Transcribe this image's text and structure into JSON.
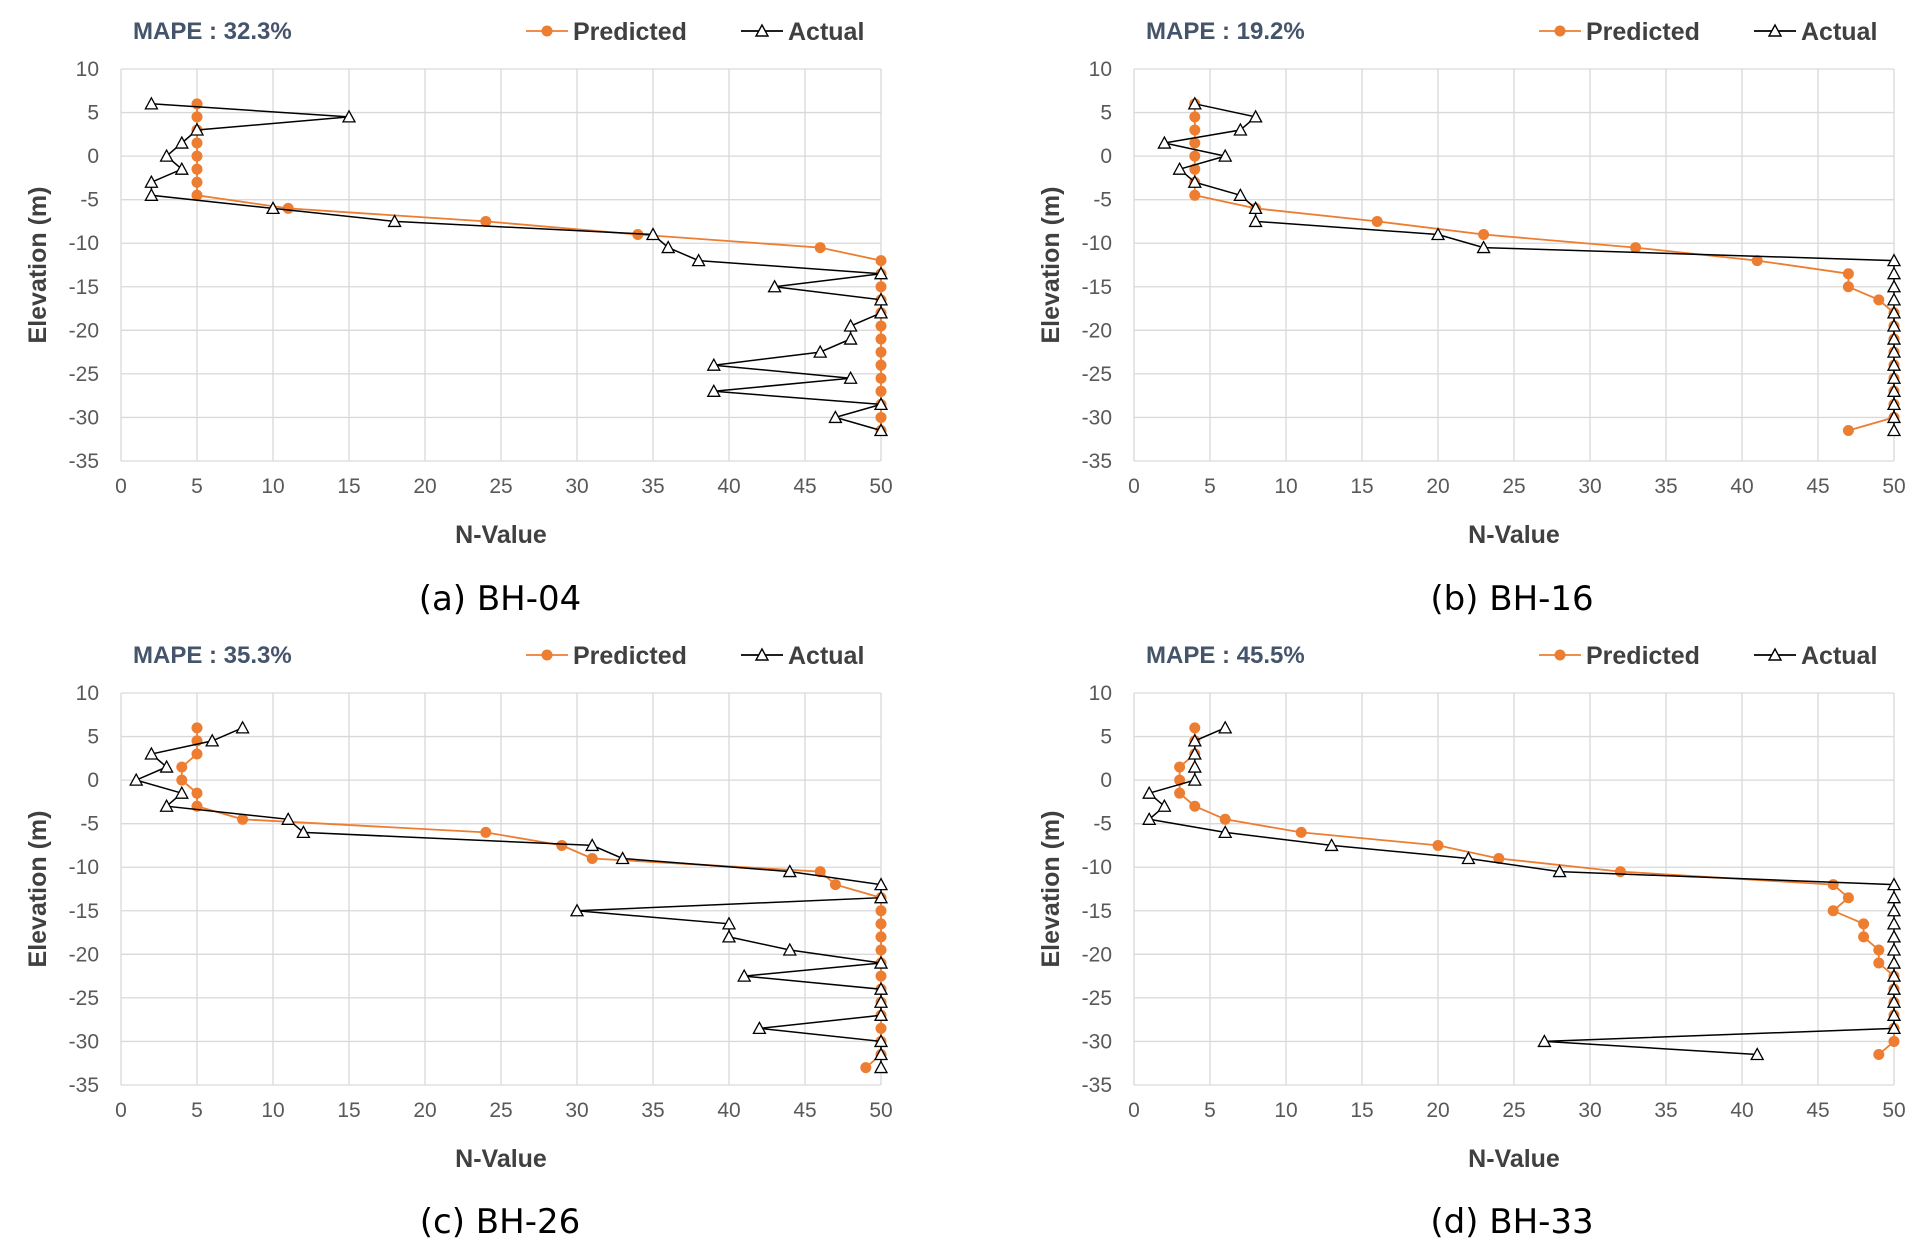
{
  "chart_data": [
    {
      "type": "line",
      "title": "MAPE : 32.3%",
      "caption": "(a) BH-04",
      "xlabel": "N-Value",
      "ylabel": "Elevation (m)",
      "xlim": [
        0,
        50
      ],
      "ylim": [
        -35,
        10
      ],
      "xticks": [
        "0",
        "5",
        "10",
        "15",
        "20",
        "25",
        "30",
        "35",
        "40",
        "45",
        "50"
      ],
      "yticks": [
        "10",
        "5",
        "0",
        "-5",
        "-10",
        "-15",
        "-20",
        "-25",
        "-30",
        "-35"
      ],
      "grid": true,
      "legend": "top-right",
      "series": [
        {
          "name": "Predicted",
          "color": "#ed7d31",
          "marker": "circle",
          "points": [
            [
              5,
              6
            ],
            [
              5,
              4.5
            ],
            [
              5,
              3
            ],
            [
              5,
              1.5
            ],
            [
              5,
              0
            ],
            [
              5,
              -1.5
            ],
            [
              5,
              -3
            ],
            [
              5,
              -4.5
            ],
            [
              11,
              -6
            ],
            [
              24,
              -7.5
            ],
            [
              34,
              -9
            ],
            [
              46,
              -10.5
            ],
            [
              50,
              -12
            ],
            [
              50,
              -13.5
            ],
            [
              50,
              -15
            ],
            [
              50,
              -16.5
            ],
            [
              50,
              -18
            ],
            [
              50,
              -19.5
            ],
            [
              50,
              -21
            ],
            [
              50,
              -22.5
            ],
            [
              50,
              -24
            ],
            [
              50,
              -25.5
            ],
            [
              50,
              -27
            ],
            [
              50,
              -28.5
            ],
            [
              50,
              -30
            ],
            [
              50,
              -31.5
            ]
          ]
        },
        {
          "name": "Actual",
          "color": "#000000",
          "marker": "triangle",
          "points": [
            [
              2,
              6
            ],
            [
              15,
              4.5
            ],
            [
              5,
              3
            ],
            [
              4,
              1.5
            ],
            [
              3,
              0
            ],
            [
              4,
              -1.5
            ],
            [
              2,
              -3
            ],
            [
              2,
              -4.5
            ],
            [
              10,
              -6
            ],
            [
              18,
              -7.5
            ],
            [
              35,
              -9
            ],
            [
              36,
              -10.5
            ],
            [
              38,
              -12
            ],
            [
              50,
              -13.5
            ],
            [
              43,
              -15
            ],
            [
              50,
              -16.5
            ],
            [
              50,
              -18
            ],
            [
              48,
              -19.5
            ],
            [
              48,
              -21
            ],
            [
              46,
              -22.5
            ],
            [
              39,
              -24
            ],
            [
              48,
              -25.5
            ],
            [
              39,
              -27
            ],
            [
              50,
              -28.5
            ],
            [
              47,
              -30
            ],
            [
              50,
              -31.5
            ]
          ]
        }
      ]
    },
    {
      "type": "line",
      "title": "MAPE : 19.2%",
      "caption": "(b) BH-16",
      "xlabel": "N-Value",
      "ylabel": "Elevation (m)",
      "xlim": [
        0,
        50
      ],
      "ylim": [
        -35,
        10
      ],
      "xticks": [
        "0",
        "5",
        "10",
        "15",
        "20",
        "25",
        "30",
        "35",
        "40",
        "45",
        "50"
      ],
      "yticks": [
        "10",
        "5",
        "0",
        "-5",
        "-10",
        "-15",
        "-20",
        "-25",
        "-30",
        "-35"
      ],
      "grid": true,
      "legend": "top-right",
      "series": [
        {
          "name": "Predicted",
          "color": "#ed7d31",
          "marker": "circle",
          "points": [
            [
              4,
              6
            ],
            [
              4,
              4.5
            ],
            [
              4,
              3
            ],
            [
              4,
              1.5
            ],
            [
              4,
              0
            ],
            [
              4,
              -1.5
            ],
            [
              4,
              -3
            ],
            [
              4,
              -4.5
            ],
            [
              8,
              -6
            ],
            [
              16,
              -7.5
            ],
            [
              23,
              -9
            ],
            [
              33,
              -10.5
            ],
            [
              41,
              -12
            ],
            [
              47,
              -13.5
            ],
            [
              47,
              -15
            ],
            [
              49,
              -16.5
            ],
            [
              50,
              -18
            ],
            [
              50,
              -19.5
            ],
            [
              50,
              -21
            ],
            [
              50,
              -22.5
            ],
            [
              50,
              -24
            ],
            [
              50,
              -25.5
            ],
            [
              50,
              -27
            ],
            [
              50,
              -28.5
            ],
            [
              50,
              -30
            ],
            [
              47,
              -31.5
            ]
          ]
        },
        {
          "name": "Actual",
          "color": "#000000",
          "marker": "triangle",
          "points": [
            [
              4,
              6
            ],
            [
              8,
              4.5
            ],
            [
              7,
              3
            ],
            [
              2,
              1.5
            ],
            [
              6,
              0
            ],
            [
              3,
              -1.5
            ],
            [
              4,
              -3
            ],
            [
              7,
              -4.5
            ],
            [
              8,
              -6
            ],
            [
              8,
              -7.5
            ],
            [
              20,
              -9
            ],
            [
              23,
              -10.5
            ],
            [
              50,
              -12
            ],
            [
              50,
              -13.5
            ],
            [
              50,
              -15
            ],
            [
              50,
              -16.5
            ],
            [
              50,
              -18
            ],
            [
              50,
              -19.5
            ],
            [
              50,
              -21
            ],
            [
              50,
              -22.5
            ],
            [
              50,
              -24
            ],
            [
              50,
              -25.5
            ],
            [
              50,
              -27
            ],
            [
              50,
              -28.5
            ],
            [
              50,
              -30
            ],
            [
              50,
              -31.5
            ]
          ]
        }
      ]
    },
    {
      "type": "line",
      "title": "MAPE : 35.3%",
      "caption": "(c) BH-26",
      "xlabel": "N-Value",
      "ylabel": "Elevation (m)",
      "xlim": [
        0,
        50
      ],
      "ylim": [
        -35,
        10
      ],
      "xticks": [
        "0",
        "5",
        "10",
        "15",
        "20",
        "25",
        "30",
        "35",
        "40",
        "45",
        "50"
      ],
      "yticks": [
        "10",
        "5",
        "0",
        "-5",
        "-10",
        "-15",
        "-20",
        "-25",
        "-30",
        "-35"
      ],
      "grid": true,
      "legend": "top-right",
      "series": [
        {
          "name": "Predicted",
          "color": "#ed7d31",
          "marker": "circle",
          "points": [
            [
              5,
              6
            ],
            [
              5,
              4.5
            ],
            [
              5,
              3
            ],
            [
              4,
              1.5
            ],
            [
              4,
              0
            ],
            [
              5,
              -1.5
            ],
            [
              5,
              -3
            ],
            [
              8,
              -4.5
            ],
            [
              24,
              -6
            ],
            [
              29,
              -7.5
            ],
            [
              31,
              -9
            ],
            [
              46,
              -10.5
            ],
            [
              47,
              -12
            ],
            [
              50,
              -13.5
            ],
            [
              50,
              -15
            ],
            [
              50,
              -16.5
            ],
            [
              50,
              -18
            ],
            [
              50,
              -19.5
            ],
            [
              50,
              -21
            ],
            [
              50,
              -22.5
            ],
            [
              50,
              -24
            ],
            [
              50,
              -25.5
            ],
            [
              50,
              -27
            ],
            [
              50,
              -28.5
            ],
            [
              50,
              -30
            ],
            [
              50,
              -31.5
            ],
            [
              49,
              -33
            ]
          ]
        },
        {
          "name": "Actual",
          "color": "#000000",
          "marker": "triangle",
          "points": [
            [
              8,
              6
            ],
            [
              6,
              4.5
            ],
            [
              2,
              3
            ],
            [
              3,
              1.5
            ],
            [
              1,
              0
            ],
            [
              4,
              -1.5
            ],
            [
              3,
              -3
            ],
            [
              11,
              -4.5
            ],
            [
              12,
              -6
            ],
            [
              31,
              -7.5
            ],
            [
              33,
              -9
            ],
            [
              44,
              -10.5
            ],
            [
              50,
              -12
            ],
            [
              50,
              -13.5
            ],
            [
              30,
              -15
            ],
            [
              40,
              -16.5
            ],
            [
              40,
              -18
            ],
            [
              44,
              -19.5
            ],
            [
              50,
              -21
            ],
            [
              41,
              -22.5
            ],
            [
              50,
              -24
            ],
            [
              50,
              -25.5
            ],
            [
              50,
              -27
            ],
            [
              42,
              -28.5
            ],
            [
              50,
              -30
            ],
            [
              50,
              -31.5
            ],
            [
              50,
              -33
            ]
          ]
        }
      ]
    },
    {
      "type": "line",
      "title": "MAPE : 45.5%",
      "caption": "(d) BH-33",
      "xlabel": "N-Value",
      "ylabel": "Elevation (m)",
      "xlim": [
        0,
        50
      ],
      "ylim": [
        -35,
        10
      ],
      "xticks": [
        "0",
        "5",
        "10",
        "15",
        "20",
        "25",
        "30",
        "35",
        "40",
        "45",
        "50"
      ],
      "yticks": [
        "10",
        "5",
        "0",
        "-5",
        "-10",
        "-15",
        "-20",
        "-25",
        "-30",
        "-35"
      ],
      "grid": true,
      "legend": "top-right",
      "series": [
        {
          "name": "Predicted",
          "color": "#ed7d31",
          "marker": "circle",
          "points": [
            [
              4,
              6
            ],
            [
              4,
              4.5
            ],
            [
              4,
              3
            ],
            [
              3,
              1.5
            ],
            [
              3,
              0
            ],
            [
              3,
              -1.5
            ],
            [
              4,
              -3
            ],
            [
              6,
              -4.5
            ],
            [
              11,
              -6
            ],
            [
              20,
              -7.5
            ],
            [
              24,
              -9
            ],
            [
              32,
              -10.5
            ],
            [
              46,
              -12
            ],
            [
              47,
              -13.5
            ],
            [
              46,
              -15
            ],
            [
              48,
              -16.5
            ],
            [
              48,
              -18
            ],
            [
              49,
              -19.5
            ],
            [
              49,
              -21
            ],
            [
              50,
              -22.5
            ],
            [
              50,
              -24
            ],
            [
              50,
              -25.5
            ],
            [
              50,
              -27
            ],
            [
              50,
              -28.5
            ],
            [
              50,
              -30
            ],
            [
              49,
              -31.5
            ]
          ]
        },
        {
          "name": "Actual",
          "color": "#000000",
          "marker": "triangle",
          "points": [
            [
              6,
              6
            ],
            [
              4,
              4.5
            ],
            [
              4,
              3
            ],
            [
              4,
              1.5
            ],
            [
              4,
              0
            ],
            [
              1,
              -1.5
            ],
            [
              2,
              -3
            ],
            [
              1,
              -4.5
            ],
            [
              6,
              -6
            ],
            [
              13,
              -7.5
            ],
            [
              22,
              -9
            ],
            [
              28,
              -10.5
            ],
            [
              50,
              -12
            ],
            [
              50,
              -13.5
            ],
            [
              50,
              -15
            ],
            [
              50,
              -16.5
            ],
            [
              50,
              -18
            ],
            [
              50,
              -19.5
            ],
            [
              50,
              -21
            ],
            [
              50,
              -22.5
            ],
            [
              50,
              -24
            ],
            [
              50,
              -25.5
            ],
            [
              50,
              -27
            ],
            [
              50,
              -28.5
            ],
            [
              27,
              -30
            ],
            [
              41,
              -31.5
            ]
          ]
        }
      ]
    }
  ]
}
